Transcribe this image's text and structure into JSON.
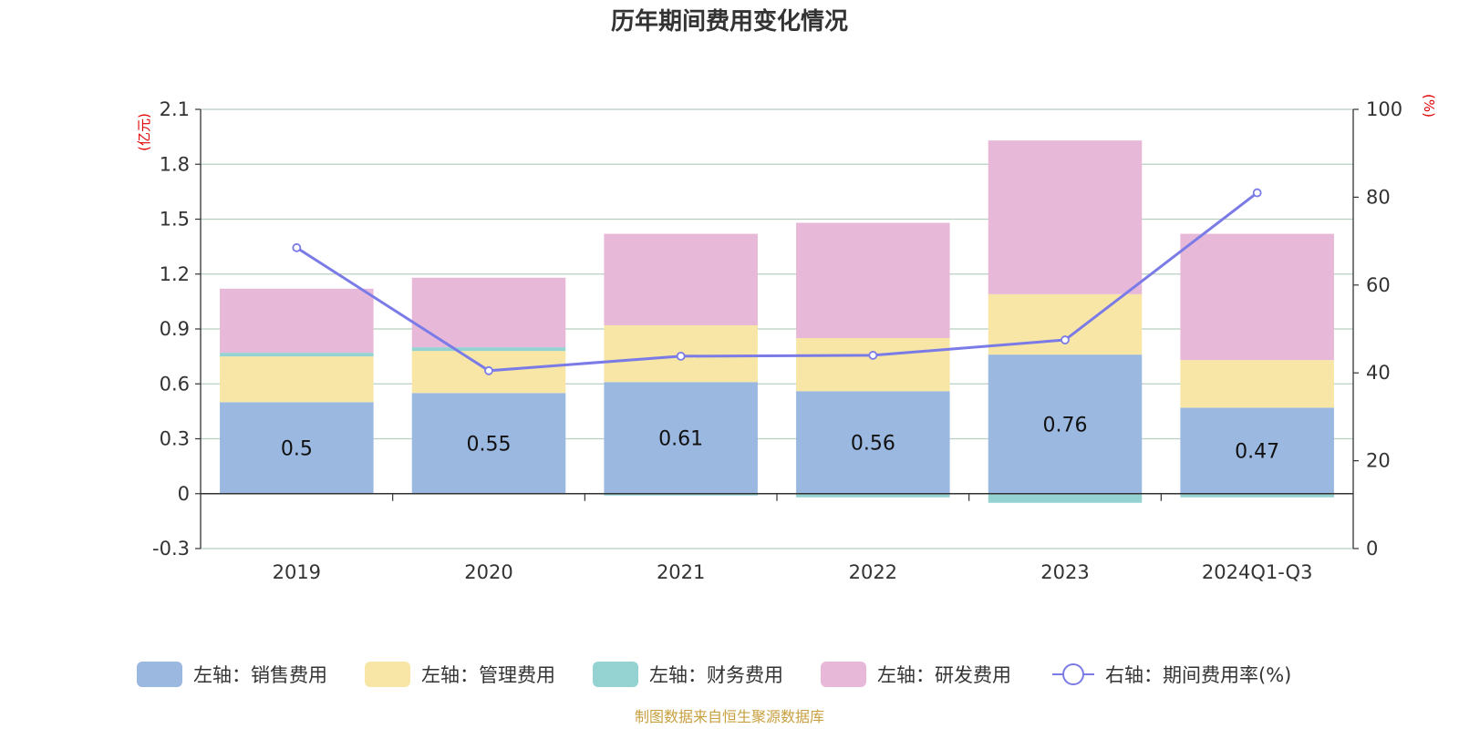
{
  "chart_data": {
    "type": "bar",
    "title": "历年期间费用变化情况",
    "categories": [
      "2019",
      "2020",
      "2021",
      "2022",
      "2023",
      "2024Q1-Q3"
    ],
    "left_axis": {
      "unit": "(亿元)",
      "min": -0.3,
      "max": 2.1,
      "ticks": [
        "-0.3",
        "0",
        "0.3",
        "0.6",
        "0.9",
        "1.2",
        "1.5",
        "1.8",
        "2.1"
      ]
    },
    "right_axis": {
      "unit": "(%)",
      "min": 0,
      "max": 100,
      "ticks": [
        "0",
        "20",
        "40",
        "60",
        "80",
        "100"
      ]
    },
    "series": [
      {
        "name": "左轴：销售费用",
        "color": "#9bb8e0",
        "axis": "left",
        "values": [
          0.5,
          0.55,
          0.61,
          0.56,
          0.76,
          0.47
        ],
        "labels": [
          "0.5",
          "0.55",
          "0.61",
          "0.56",
          "0.76",
          "0.47"
        ]
      },
      {
        "name": "左轴：管理费用",
        "color": "#f7e6a6",
        "axis": "left",
        "values": [
          0.25,
          0.23,
          0.31,
          0.29,
          0.33,
          0.26
        ]
      },
      {
        "name": "左轴：财务费用",
        "color": "#95d3d3",
        "axis": "left",
        "values": [
          0.02,
          0.02,
          -0.01,
          -0.02,
          -0.05,
          -0.02
        ]
      },
      {
        "name": "左轴：研发费用",
        "color": "#e8b8d8",
        "axis": "left",
        "values": [
          0.35,
          0.38,
          0.5,
          0.63,
          0.84,
          0.69
        ]
      },
      {
        "name": "右轴：期间费用率(%)",
        "color": "#7b7be8",
        "axis": "right",
        "type": "line",
        "values": [
          68.5,
          40.5,
          43.8,
          44.0,
          47.5,
          81.0
        ]
      }
    ],
    "grid": true,
    "legend_position": "bottom"
  },
  "source": "制图数据来自恒生聚源数据库"
}
